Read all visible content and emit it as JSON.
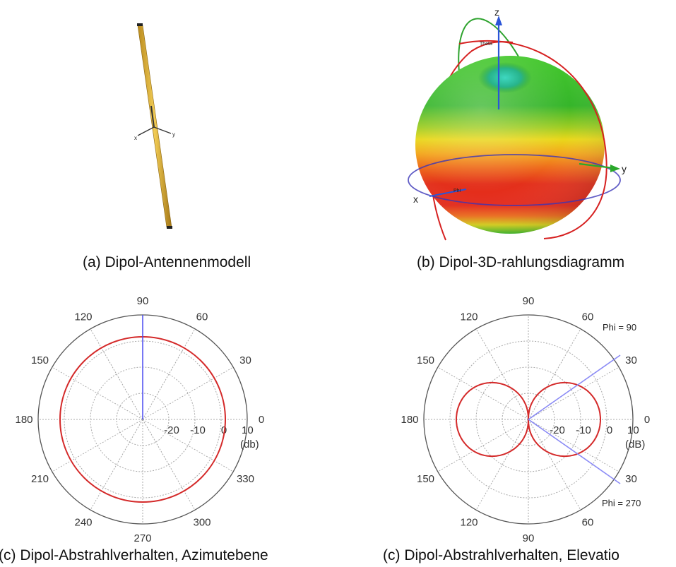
{
  "captions": {
    "a": "(a) Dipol-Antennenmodell",
    "b": "(b) Dipol-3D-rahlungsdiagramm",
    "c": "(c) Dipol-Abstrahlverhalten, Azimutebene",
    "d": "(c) Dipol-Abstrahlverhalten, Elevatio"
  },
  "model": {
    "axis_x": "x",
    "axis_y": "y"
  },
  "pattern3d": {
    "axis_x": "x",
    "axis_y": "y",
    "axis_z": "z",
    "theta_label": "Theta",
    "phi_label": "Phi",
    "colors": {
      "red": "#e3221a",
      "orange": "#f17a1c",
      "yellow": "#e8d818",
      "green": "#3dbb2a",
      "cyan": "#3ad0b0",
      "ring": "#d62020",
      "ring_green": "#2ea32e",
      "axis": "#2a55d8"
    }
  },
  "azimuth_plot": {
    "angle_labels": [
      "0",
      "30",
      "60",
      "90",
      "120",
      "150",
      "180",
      "210",
      "240",
      "270",
      "300",
      "330"
    ],
    "radial_labels": [
      "-20",
      "-10",
      "0"
    ],
    "outer_label": "10",
    "unit": "(db)",
    "colors": {
      "pattern": "#d42a2a",
      "marker": "#4a4af0",
      "grid": "#999999"
    }
  },
  "elevation_plot": {
    "angle_labels": [
      "0",
      "30",
      "60",
      "90",
      "120",
      "150",
      "180",
      "150",
      "120",
      "90",
      "60",
      "30"
    ],
    "radial_labels": [
      "-20",
      "-10",
      "0"
    ],
    "outer_label": "10",
    "unit": "(dB)",
    "phi_top": "Phi = 90",
    "phi_bottom": "Phi = 270",
    "colors": {
      "pattern": "#d42a2a",
      "marker": "#8a8af5",
      "grid": "#999999"
    }
  }
}
